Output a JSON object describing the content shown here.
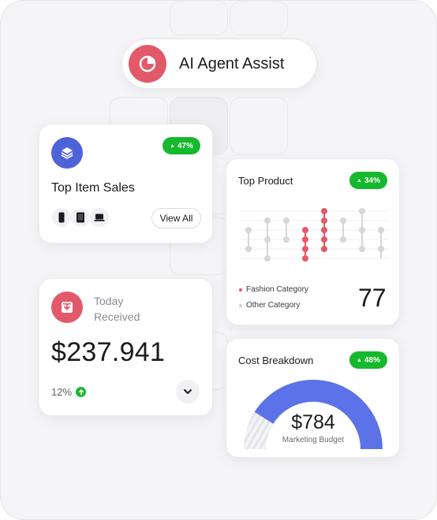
{
  "header": {
    "title": "AI Agent Assist",
    "icon": "pie-chart-icon"
  },
  "colors": {
    "accent_red": "#e25a69",
    "accent_blue": "#4f63d8",
    "success_green": "#16b82c",
    "gauge_blue": "#5b72e8"
  },
  "top_item_sales": {
    "title": "Top Item Sales",
    "badge": "47%",
    "products": [
      "phone-icon",
      "tablet-icon",
      "laptop-icon"
    ],
    "view_all_label": "View All"
  },
  "received": {
    "label": "Today Received",
    "amount": "$237.941",
    "growth": "12%"
  },
  "top_product": {
    "title": "Top Product",
    "badge": "34%",
    "legend": [
      {
        "label": "Fashion Category",
        "color": "#e25a69"
      },
      {
        "label": "Other Category",
        "color": "#d0d0d5"
      }
    ],
    "value": "77"
  },
  "cost_breakdown": {
    "title": "Cost Breakdown",
    "badge": "48%",
    "amount": "$784",
    "label": "Marketing Budget",
    "budget_fraction": 0.48
  },
  "chart_data": {
    "type": "scatter",
    "title": "Top Product",
    "series": [
      {
        "name": "Fashion Category",
        "columns": [
          4,
          5,
          6
        ]
      },
      {
        "name": "Other Category",
        "columns": [
          1,
          2,
          3,
          7,
          8,
          9
        ]
      }
    ],
    "columns": [
      {
        "id": 1,
        "levels": [
          2,
          3,
          4
        ],
        "highlight": false
      },
      {
        "id": 2,
        "levels": [
          1,
          2,
          3,
          4,
          5
        ],
        "highlight": false
      },
      {
        "id": 3,
        "levels": [
          1,
          2,
          3
        ],
        "highlight": false
      },
      {
        "id": 4,
        "levels": [
          2,
          3,
          4,
          5
        ],
        "highlight": true
      },
      {
        "id": 5,
        "levels": [
          0,
          1,
          2,
          3,
          4
        ],
        "highlight": true
      },
      {
        "id": 6,
        "levels": [
          0,
          1,
          2,
          3,
          4,
          5
        ],
        "highlight": false
      }
    ]
  }
}
